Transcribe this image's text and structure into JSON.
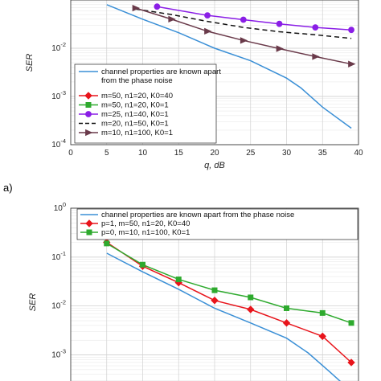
{
  "chart_data": [
    {
      "type": "line",
      "panel_label": "",
      "xlabel": "q, dB",
      "ylabel": "SER",
      "xlim": [
        0,
        40
      ],
      "ylim_log10": [
        -4,
        -1
      ],
      "yscale": "log",
      "grid": true,
      "legend_position": "lower-left",
      "xticks": [
        "0",
        "5",
        "10",
        "15",
        "20",
        "25",
        "30",
        "35",
        "40"
      ],
      "yticks": [
        "10-4",
        "10-3",
        "10-2"
      ],
      "series": [
        {
          "name": "channel properties are known apart from the phase noise",
          "color": "#3a8fd6",
          "marker": "none",
          "dash": "solid",
          "x": [
            5,
            10,
            15,
            20,
            25,
            30,
            32,
            35,
            39
          ],
          "y": [
            0.08,
            0.04,
            0.021,
            0.01,
            0.0055,
            0.0024,
            0.0015,
            0.0006,
            0.00022
          ]
        },
        {
          "name": "m=50, n1=20, K0=40",
          "color": "#e8141b",
          "marker": "diamond",
          "dash": "solid",
          "x": [],
          "y": []
        },
        {
          "name": "m=50, n1=20, K0=1",
          "color": "#2eaa2e",
          "marker": "square",
          "dash": "solid",
          "x": [],
          "y": []
        },
        {
          "name": "m=25, n1=40, K0=1",
          "color": "#8a1ee6",
          "marker": "circle",
          "dash": "solid",
          "x": [
            12,
            19,
            24,
            29,
            34,
            39
          ],
          "y": [
            0.073,
            0.048,
            0.039,
            0.032,
            0.027,
            0.024
          ]
        },
        {
          "name": "m=20, n1=50, K0=1",
          "color": "#111111",
          "marker": "none",
          "dash": "dashed",
          "x": [
            9,
            14,
            19,
            24,
            29,
            34,
            39
          ],
          "y": [
            0.065,
            0.05,
            0.036,
            0.027,
            0.022,
            0.019,
            0.016
          ]
        },
        {
          "name": "m=10, n1=100, K0=1",
          "color": "#6a3a4a",
          "marker": "triangle-right",
          "dash": "solid",
          "x": [
            9,
            14,
            19,
            24,
            29,
            34,
            39
          ],
          "y": [
            0.068,
            0.04,
            0.0225,
            0.0145,
            0.0098,
            0.0067,
            0.0047
          ]
        }
      ]
    },
    {
      "type": "line",
      "panel_label": "a)",
      "xlabel": "",
      "ylabel": "SER",
      "xlim": [
        0,
        40
      ],
      "ylim_log10": [
        -3.55,
        0
      ],
      "yscale": "log",
      "grid": true,
      "legend_position": "top-right",
      "xticks": [],
      "yticks": [
        "10-3",
        "10-2",
        "10-1",
        "100"
      ],
      "series": [
        {
          "name": "channel properties are known apart from the phase noise",
          "color": "#3a8fd6",
          "marker": "none",
          "dash": "solid",
          "x": [
            5,
            10,
            15,
            20,
            25,
            30,
            33,
            36,
            39
          ],
          "y": [
            0.12,
            0.05,
            0.022,
            0.009,
            0.0045,
            0.0022,
            0.0011,
            0.00045,
            0.00018
          ]
        },
        {
          "name": "p=1, m=50, n1=20, K0=40",
          "color": "#e8141b",
          "marker": "diamond",
          "dash": "solid",
          "x": [
            5,
            10,
            15,
            20,
            25,
            30,
            35,
            39
          ],
          "y": [
            0.2,
            0.065,
            0.03,
            0.013,
            0.0085,
            0.0045,
            0.0024,
            0.0007
          ]
        },
        {
          "name": "p=0, m=10, n1=100, K0=1",
          "color": "#2eaa2e",
          "marker": "square",
          "dash": "solid",
          "x": [
            5,
            10,
            15,
            20,
            25,
            30,
            35,
            39
          ],
          "y": [
            0.19,
            0.07,
            0.035,
            0.021,
            0.015,
            0.009,
            0.0072,
            0.0045
          ]
        }
      ]
    }
  ]
}
